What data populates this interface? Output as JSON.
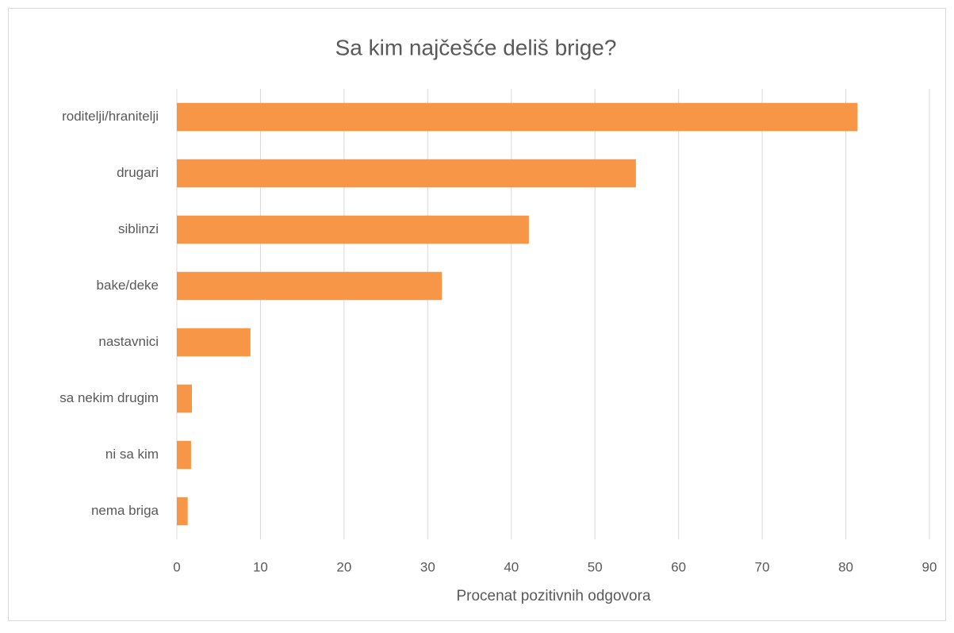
{
  "chart_data": {
    "type": "bar",
    "orientation": "horizontal",
    "title": "Sa kim najčešće deliš brige?",
    "x_label": "Procenat pozitivnih odgovora",
    "categories": [
      "roditelji/hranitelji",
      "drugari",
      "siblinzi",
      "bake/deke",
      "nastavnici",
      "sa nekim drugim",
      "ni sa kim",
      "nema briga"
    ],
    "values": [
      81.4,
      54.9,
      42.1,
      31.7,
      8.8,
      1.8,
      1.7,
      1.3
    ],
    "color": "#f79646",
    "xlim": [
      0,
      90
    ],
    "xticks": [
      0,
      10,
      20,
      30,
      40,
      50,
      60,
      70,
      80,
      90
    ],
    "grid": true
  }
}
